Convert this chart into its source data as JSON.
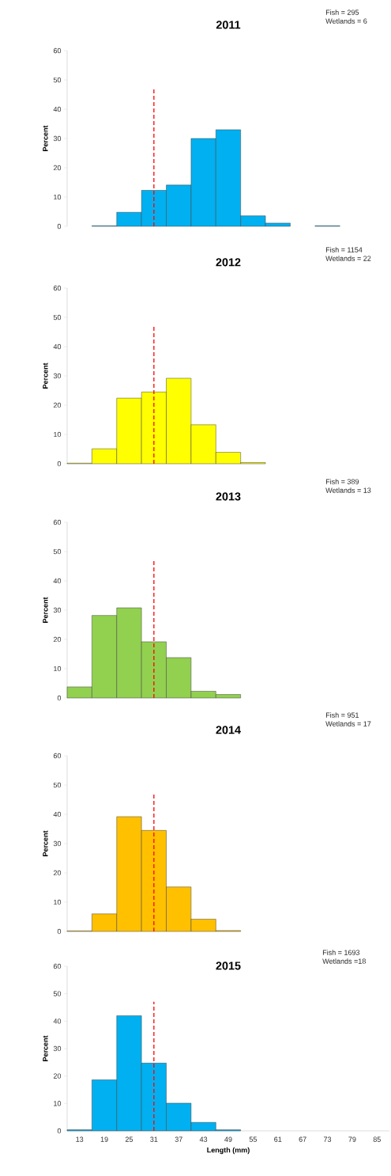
{
  "chart_data": [
    {
      "type": "bar",
      "title": "2011",
      "ylabel": "Percent",
      "x": [
        19,
        25,
        31,
        37,
        43,
        49,
        55,
        61,
        67,
        73
      ],
      "values": [
        0.2,
        4.8,
        12.3,
        14.1,
        30.0,
        33.0,
        3.6,
        1.1,
        null,
        0.2
      ],
      "color": "#00b0f0",
      "ylim": [
        0,
        60
      ],
      "yticks": [
        0,
        10,
        20,
        30,
        40,
        50,
        60
      ],
      "tick_labels": "y",
      "ref_lines": [
        {
          "axis": "x",
          "value": "31",
          "color": "#ff0000",
          "line_style": "dashed"
        }
      ],
      "annotations": [
        "Fish = 295",
        "Wetlands = 6"
      ]
    },
    {
      "type": "bar",
      "title": "2012",
      "ylabel": "Percent",
      "x": [
        13,
        19,
        25,
        31,
        37,
        43,
        49,
        55
      ],
      "values": [
        0.2,
        5.1,
        22.4,
        24.5,
        29.2,
        13.3,
        3.9,
        0.4
      ],
      "color": "#ffff00",
      "ylim": [
        0,
        60
      ],
      "yticks": [
        0,
        10,
        20,
        30,
        40,
        50,
        60
      ],
      "tick_labels": "y",
      "ref_lines": [
        {
          "axis": "x",
          "value": "31",
          "color": "#ff0000",
          "line_style": "dashed"
        }
      ],
      "annotations": [
        "Fish = 1154",
        "Wetlands = 22"
      ]
    },
    {
      "type": "bar",
      "title": "2013",
      "ylabel": "Percent",
      "x": [
        13,
        19,
        25,
        31,
        37,
        43,
        49
      ],
      "values": [
        3.8,
        28.2,
        30.8,
        19.2,
        13.8,
        2.3,
        1.2
      ],
      "color": "#92d050",
      "ylim": [
        0,
        60
      ],
      "yticks": [
        0,
        10,
        20,
        30,
        40,
        50,
        60
      ],
      "tick_labels": "y",
      "ref_lines": [
        {
          "axis": "x",
          "value": "31",
          "color": "#ff0000",
          "line_style": "dashed"
        }
      ],
      "annotations": [
        "Fish = 389",
        "Wetlands = 13"
      ]
    },
    {
      "type": "bar",
      "title": "2014",
      "ylabel": "Percent",
      "x": [
        13,
        19,
        25,
        31,
        37,
        43,
        49
      ],
      "values": [
        0.2,
        6.0,
        39.2,
        34.5,
        15.2,
        4.2,
        0.3
      ],
      "color": "#ffc000",
      "ylim": [
        0,
        60
      ],
      "yticks": [
        0,
        10,
        20,
        30,
        40,
        50,
        60
      ],
      "tick_labels": "y",
      "ref_lines": [
        {
          "axis": "x",
          "value": "31",
          "color": "#ff0000",
          "line_style": "dashed"
        }
      ],
      "annotations": [
        "Fish = 951",
        "Wetlands = 17"
      ]
    },
    {
      "type": "bar",
      "title": "2015",
      "xlabel": "Length (mm)",
      "ylabel": "Percent",
      "x": [
        13,
        19,
        25,
        31,
        37,
        43,
        49
      ],
      "values": [
        0.4,
        18.6,
        42.0,
        24.7,
        10.1,
        3.1,
        0.4
      ],
      "color": "#00b0f0",
      "xlim": [
        10,
        88
      ],
      "xticks": [
        13,
        19,
        25,
        31,
        37,
        43,
        49,
        55,
        61,
        67,
        73,
        79,
        85
      ],
      "ylim": [
        0,
        60
      ],
      "yticks": [
        0,
        10,
        20,
        30,
        40,
        50,
        60
      ],
      "ref_lines": [
        {
          "axis": "x",
          "value": 31.0,
          "color": "#ff0000",
          "line_style": "dashed"
        }
      ],
      "annotations": [
        "Fish = 1693",
        "Wetlands =18"
      ]
    }
  ]
}
